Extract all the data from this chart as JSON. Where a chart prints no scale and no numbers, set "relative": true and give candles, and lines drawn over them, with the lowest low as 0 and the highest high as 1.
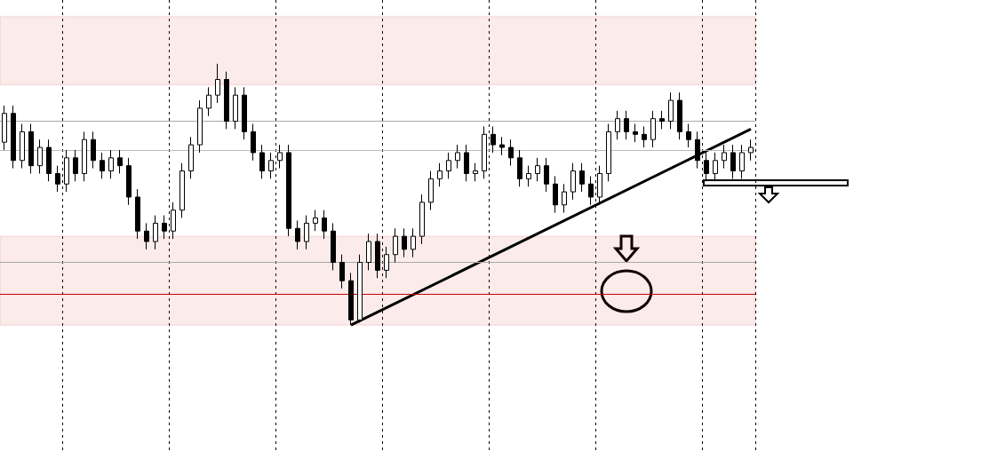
{
  "chart_data": {
    "type": "candlestick",
    "relative": true,
    "grid": "x",
    "categories": [
      null,
      null,
      null,
      null,
      null,
      null,
      null,
      null,
      null,
      null,
      null,
      null,
      null,
      null,
      null,
      null,
      null,
      null,
      null,
      null,
      null,
      null,
      null,
      null,
      null,
      null,
      null,
      null,
      null,
      null,
      null,
      null,
      null,
      null,
      null,
      null,
      null,
      null,
      null,
      null,
      null,
      null,
      null,
      null,
      null,
      null,
      null,
      null,
      null,
      null,
      null,
      null,
      null,
      null,
      null,
      null,
      null,
      null,
      null,
      null,
      null,
      null,
      null,
      null,
      null,
      null,
      null,
      null,
      null,
      null,
      null,
      null,
      null,
      null,
      null,
      null,
      null,
      null,
      null,
      null,
      null,
      null,
      null,
      null,
      null
    ],
    "ohlc": [
      [
        0.7,
        0.84,
        0.67,
        0.81
      ],
      [
        0.81,
        0.84,
        0.6,
        0.63
      ],
      [
        0.63,
        0.77,
        0.6,
        0.74
      ],
      [
        0.74,
        0.77,
        0.58,
        0.61
      ],
      [
        0.61,
        0.71,
        0.58,
        0.68
      ],
      [
        0.68,
        0.71,
        0.55,
        0.58
      ],
      [
        0.58,
        0.61,
        0.51,
        0.54
      ],
      [
        0.54,
        0.67,
        0.51,
        0.64
      ],
      [
        0.64,
        0.67,
        0.55,
        0.58
      ],
      [
        0.58,
        0.74,
        0.55,
        0.71
      ],
      [
        0.71,
        0.74,
        0.6,
        0.63
      ],
      [
        0.63,
        0.66,
        0.56,
        0.59
      ],
      [
        0.59,
        0.67,
        0.56,
        0.64
      ],
      [
        0.64,
        0.67,
        0.58,
        0.61
      ],
      [
        0.61,
        0.64,
        0.46,
        0.49
      ],
      [
        0.49,
        0.52,
        0.33,
        0.36
      ],
      [
        0.36,
        0.39,
        0.29,
        0.32
      ],
      [
        0.32,
        0.42,
        0.29,
        0.39
      ],
      [
        0.39,
        0.42,
        0.33,
        0.36
      ],
      [
        0.36,
        0.47,
        0.33,
        0.44
      ],
      [
        0.44,
        0.62,
        0.41,
        0.59
      ],
      [
        0.59,
        0.72,
        0.56,
        0.69
      ],
      [
        0.69,
        0.86,
        0.66,
        0.83
      ],
      [
        0.83,
        0.91,
        0.8,
        0.88
      ],
      [
        0.88,
        1.0,
        0.85,
        0.94
      ],
      [
        0.94,
        0.97,
        0.75,
        0.78
      ],
      [
        0.78,
        0.91,
        0.75,
        0.88
      ],
      [
        0.88,
        0.91,
        0.71,
        0.74
      ],
      [
        0.74,
        0.77,
        0.63,
        0.66
      ],
      [
        0.66,
        0.69,
        0.56,
        0.59
      ],
      [
        0.59,
        0.66,
        0.56,
        0.63
      ],
      [
        0.63,
        0.69,
        0.6,
        0.66
      ],
      [
        0.66,
        0.69,
        0.34,
        0.37
      ],
      [
        0.37,
        0.4,
        0.29,
        0.32
      ],
      [
        0.32,
        0.42,
        0.29,
        0.39
      ],
      [
        0.39,
        0.44,
        0.36,
        0.41
      ],
      [
        0.41,
        0.44,
        0.33,
        0.36
      ],
      [
        0.36,
        0.39,
        0.21,
        0.24
      ],
      [
        0.24,
        0.27,
        0.14,
        0.17
      ],
      [
        0.17,
        0.2,
        0.0,
        0.02
      ],
      [
        0.02,
        0.27,
        0.01,
        0.24
      ],
      [
        0.24,
        0.35,
        0.21,
        0.32
      ],
      [
        0.32,
        0.35,
        0.18,
        0.21
      ],
      [
        0.21,
        0.3,
        0.18,
        0.27
      ],
      [
        0.27,
        0.37,
        0.24,
        0.34
      ],
      [
        0.34,
        0.37,
        0.26,
        0.29
      ],
      [
        0.29,
        0.37,
        0.26,
        0.34
      ],
      [
        0.34,
        0.5,
        0.31,
        0.47
      ],
      [
        0.47,
        0.59,
        0.44,
        0.56
      ],
      [
        0.56,
        0.62,
        0.53,
        0.59
      ],
      [
        0.59,
        0.66,
        0.56,
        0.63
      ],
      [
        0.63,
        0.69,
        0.6,
        0.66
      ],
      [
        0.66,
        0.69,
        0.55,
        0.58
      ],
      [
        0.58,
        0.62,
        0.55,
        0.59
      ],
      [
        0.59,
        0.76,
        0.56,
        0.73
      ],
      [
        0.73,
        0.76,
        0.66,
        0.69
      ],
      [
        0.69,
        0.72,
        0.65,
        0.68
      ],
      [
        0.68,
        0.71,
        0.61,
        0.64
      ],
      [
        0.64,
        0.67,
        0.53,
        0.56
      ],
      [
        0.56,
        0.61,
        0.53,
        0.58
      ],
      [
        0.58,
        0.64,
        0.55,
        0.61
      ],
      [
        0.61,
        0.64,
        0.51,
        0.54
      ],
      [
        0.54,
        0.57,
        0.43,
        0.46
      ],
      [
        0.46,
        0.54,
        0.43,
        0.51
      ],
      [
        0.51,
        0.62,
        0.48,
        0.59
      ],
      [
        0.59,
        0.62,
        0.51,
        0.54
      ],
      [
        0.54,
        0.57,
        0.46,
        0.49
      ],
      [
        0.49,
        0.61,
        0.46,
        0.58
      ],
      [
        0.58,
        0.77,
        0.55,
        0.74
      ],
      [
        0.74,
        0.82,
        0.71,
        0.79
      ],
      [
        0.79,
        0.82,
        0.71,
        0.74
      ],
      [
        0.74,
        0.77,
        0.7,
        0.73
      ],
      [
        0.73,
        0.76,
        0.68,
        0.71
      ],
      [
        0.71,
        0.82,
        0.68,
        0.79
      ],
      [
        0.79,
        0.82,
        0.75,
        0.78
      ],
      [
        0.78,
        0.89,
        0.75,
        0.86
      ],
      [
        0.86,
        0.89,
        0.71,
        0.74
      ],
      [
        0.74,
        0.77,
        0.68,
        0.71
      ],
      [
        0.71,
        0.74,
        0.6,
        0.63
      ],
      [
        0.63,
        0.66,
        0.55,
        0.58
      ],
      [
        0.58,
        0.66,
        0.55,
        0.63
      ],
      [
        0.63,
        0.69,
        0.6,
        0.66
      ],
      [
        0.66,
        0.69,
        0.56,
        0.59
      ],
      [
        0.59,
        0.69,
        0.56,
        0.66
      ],
      [
        0.66,
        0.71,
        0.63,
        0.68
      ]
    ],
    "series": [
      {
        "type": "line",
        "color": "#000000",
        "values": [
          null,
          null,
          null,
          null,
          null,
          null,
          null,
          null,
          null,
          null,
          null,
          null,
          null,
          null,
          null,
          null,
          null,
          null,
          null,
          null,
          null,
          null,
          null,
          null,
          null,
          null,
          null,
          null,
          null,
          null,
          null,
          null,
          null,
          null,
          null,
          null,
          null,
          null,
          null,
          0,
          null,
          null,
          null,
          null,
          null,
          null,
          null,
          null,
          null,
          null,
          null,
          null,
          null,
          null,
          null,
          null,
          null,
          null,
          null,
          null,
          null,
          null,
          null,
          null,
          null,
          null,
          null,
          null,
          null,
          null,
          null,
          null,
          null,
          null,
          null,
          null,
          null,
          null,
          null,
          null,
          null,
          null,
          null,
          null,
          0.75
        ]
      }
    ],
    "bands": [
      {
        "axis": "y",
        "from": 0.92,
        "to": 1.18,
        "color": "#cc0000"
      },
      {
        "axis": "y",
        "from": 0.0,
        "to": 0.34,
        "color": "#cc0000"
      }
    ],
    "ref_lines": [
      {
        "axis": "y",
        "value": 0.12,
        "color": "#cc0000"
      },
      {
        "axis": "y",
        "value": 0.67,
        "color": "#bbbbbb"
      },
      {
        "axis": "y",
        "value": 0.78,
        "color": "#aaaaaa"
      },
      {
        "axis": "y",
        "value": 0.24,
        "color": "#aaaaaa"
      }
    ]
  }
}
